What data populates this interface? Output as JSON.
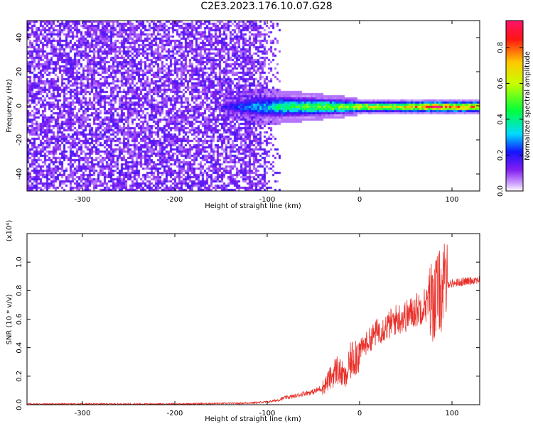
{
  "title": "C2E3.2023.176.10.07.G28",
  "colors": {
    "snr_line": "#e8302a",
    "background_speckle": "#7a1fe6",
    "frame": "#000000"
  },
  "chart_data": [
    {
      "type": "heatmap",
      "xlabel": "Height of straight line (km)",
      "ylabel": "Frequency (Hz)",
      "xlim": [
        -360,
        130
      ],
      "ylim": [
        -50,
        50
      ],
      "xticks": [
        -300,
        -200,
        -100,
        0,
        100
      ],
      "yticks": [
        -40,
        -20,
        0,
        20,
        40
      ],
      "xtick_labels": [
        "-300",
        "-200",
        "-100",
        "0",
        "100"
      ],
      "ytick_labels": [
        "-40",
        "-20",
        "0",
        "20",
        "40"
      ],
      "grid": false,
      "colorbar": {
        "label": "Normalized spectral amplitude",
        "range": [
          0.0,
          0.95
        ],
        "ticks": [
          0.0,
          0.2,
          0.4,
          0.6,
          0.8
        ],
        "tick_labels": [
          "0.0",
          "0.2",
          "0.4",
          "0.6",
          "0.8"
        ],
        "colormap": "rainbow (white-purple-blue-cyan-green-yellow-red-magenta)"
      },
      "features": {
        "noise_region_x": [
          -360,
          -85
        ],
        "noise_amplitude": 0.12,
        "signal_band_center_hz": 0,
        "signal_profile": [
          {
            "x": -150,
            "halfwidth_hz": 3,
            "peak": 0.18
          },
          {
            "x": -110,
            "halfwidth_hz": 7,
            "peak": 0.3
          },
          {
            "x": -80,
            "halfwidth_hz": 6,
            "peak": 0.42
          },
          {
            "x": -50,
            "halfwidth_hz": 5,
            "peak": 0.5
          },
          {
            "x": -20,
            "halfwidth_hz": 4,
            "peak": 0.55
          },
          {
            "x": 0,
            "halfwidth_hz": 3,
            "peak": 0.65
          },
          {
            "x": 40,
            "halfwidth_hz": 3,
            "peak": 0.65
          },
          {
            "x": 80,
            "halfwidth_hz": 3,
            "peak": 0.85
          },
          {
            "x": 130,
            "halfwidth_hz": 3,
            "peak": 0.75
          }
        ]
      }
    },
    {
      "type": "line",
      "xlabel": "Height of straight line (km)",
      "ylabel": "SNR (10 * v/v)",
      "y_multiplier": "(x10⁴)",
      "xlim": [
        -360,
        130
      ],
      "ylim": [
        0,
        1.2
      ],
      "xticks": [
        -300,
        -200,
        -100,
        0,
        100
      ],
      "yticks": [
        0.0,
        0.2,
        0.4,
        0.6,
        0.8,
        1.0
      ],
      "xtick_labels": [
        "-300",
        "-200",
        "-100",
        "0",
        "100"
      ],
      "ytick_labels": [
        "0.0",
        "0.2",
        "0.4",
        "0.6",
        "0.8",
        "1.0"
      ],
      "grid": false,
      "series": [
        {
          "x": [
            -360,
            -300,
            -200,
            -130,
            -110,
            -100,
            -90,
            -80,
            -70,
            -60,
            -50,
            -40,
            -30,
            -25,
            -20,
            -15,
            -10,
            -5,
            0,
            10,
            20,
            30,
            40,
            50,
            60,
            70,
            75,
            80,
            85,
            88,
            90,
            92,
            95,
            100,
            110,
            120,
            130
          ],
          "y": [
            0.005,
            0.005,
            0.005,
            0.01,
            0.015,
            0.02,
            0.03,
            0.05,
            0.06,
            0.08,
            0.09,
            0.12,
            0.2,
            0.25,
            0.22,
            0.18,
            0.3,
            0.35,
            0.38,
            0.45,
            0.52,
            0.55,
            0.6,
            0.62,
            0.66,
            0.7,
            0.72,
            0.74,
            0.78,
            0.8,
            0.82,
            0.84,
            0.85,
            0.85,
            0.86,
            0.87,
            0.88
          ]
        }
      ]
    }
  ]
}
